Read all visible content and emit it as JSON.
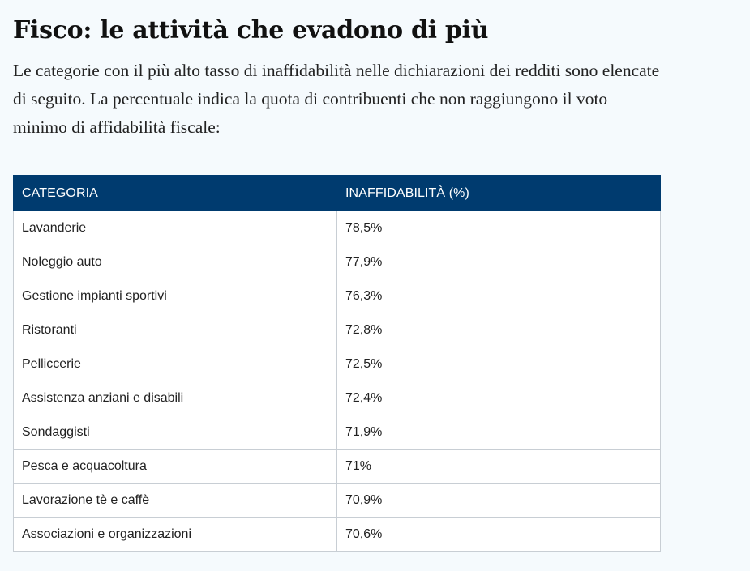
{
  "article": {
    "title": "Fisco: le attività che evadono di più",
    "intro": "Le categorie con il più alto tasso di inaffidabilità nelle dichiarazioni dei redditi sono elencate di seguito. La percentuale indica la quota di contribuenti che non raggiungono il voto minimo di affidabilità fiscale:"
  },
  "table": {
    "headers": [
      "CATEGORIA",
      "INAFFIDABILITÀ (%)"
    ],
    "rows": [
      {
        "categoria": "Lavanderie",
        "valore": "78,5%"
      },
      {
        "categoria": "Noleggio auto",
        "valore": "77,9%"
      },
      {
        "categoria": "Gestione impianti sportivi",
        "valore": "76,3%"
      },
      {
        "categoria": "Ristoranti",
        "valore": "72,8%"
      },
      {
        "categoria": "Pelliccerie",
        "valore": "72,5%"
      },
      {
        "categoria": "Assistenza anziani e disabili",
        "valore": "72,4%"
      },
      {
        "categoria": "Sondaggisti",
        "valore": "71,9%"
      },
      {
        "categoria": "Pesca e acquacoltura",
        "valore": "71%"
      },
      {
        "categoria": "Lavorazione tè e caffè",
        "valore": "70,9%"
      },
      {
        "categoria": "Associazioni e organizzazioni",
        "valore": "70,6%"
      }
    ]
  },
  "colors": {
    "header_bg": "#003b6f",
    "page_bg": "#f5fafd",
    "border": "#c8ced4"
  }
}
